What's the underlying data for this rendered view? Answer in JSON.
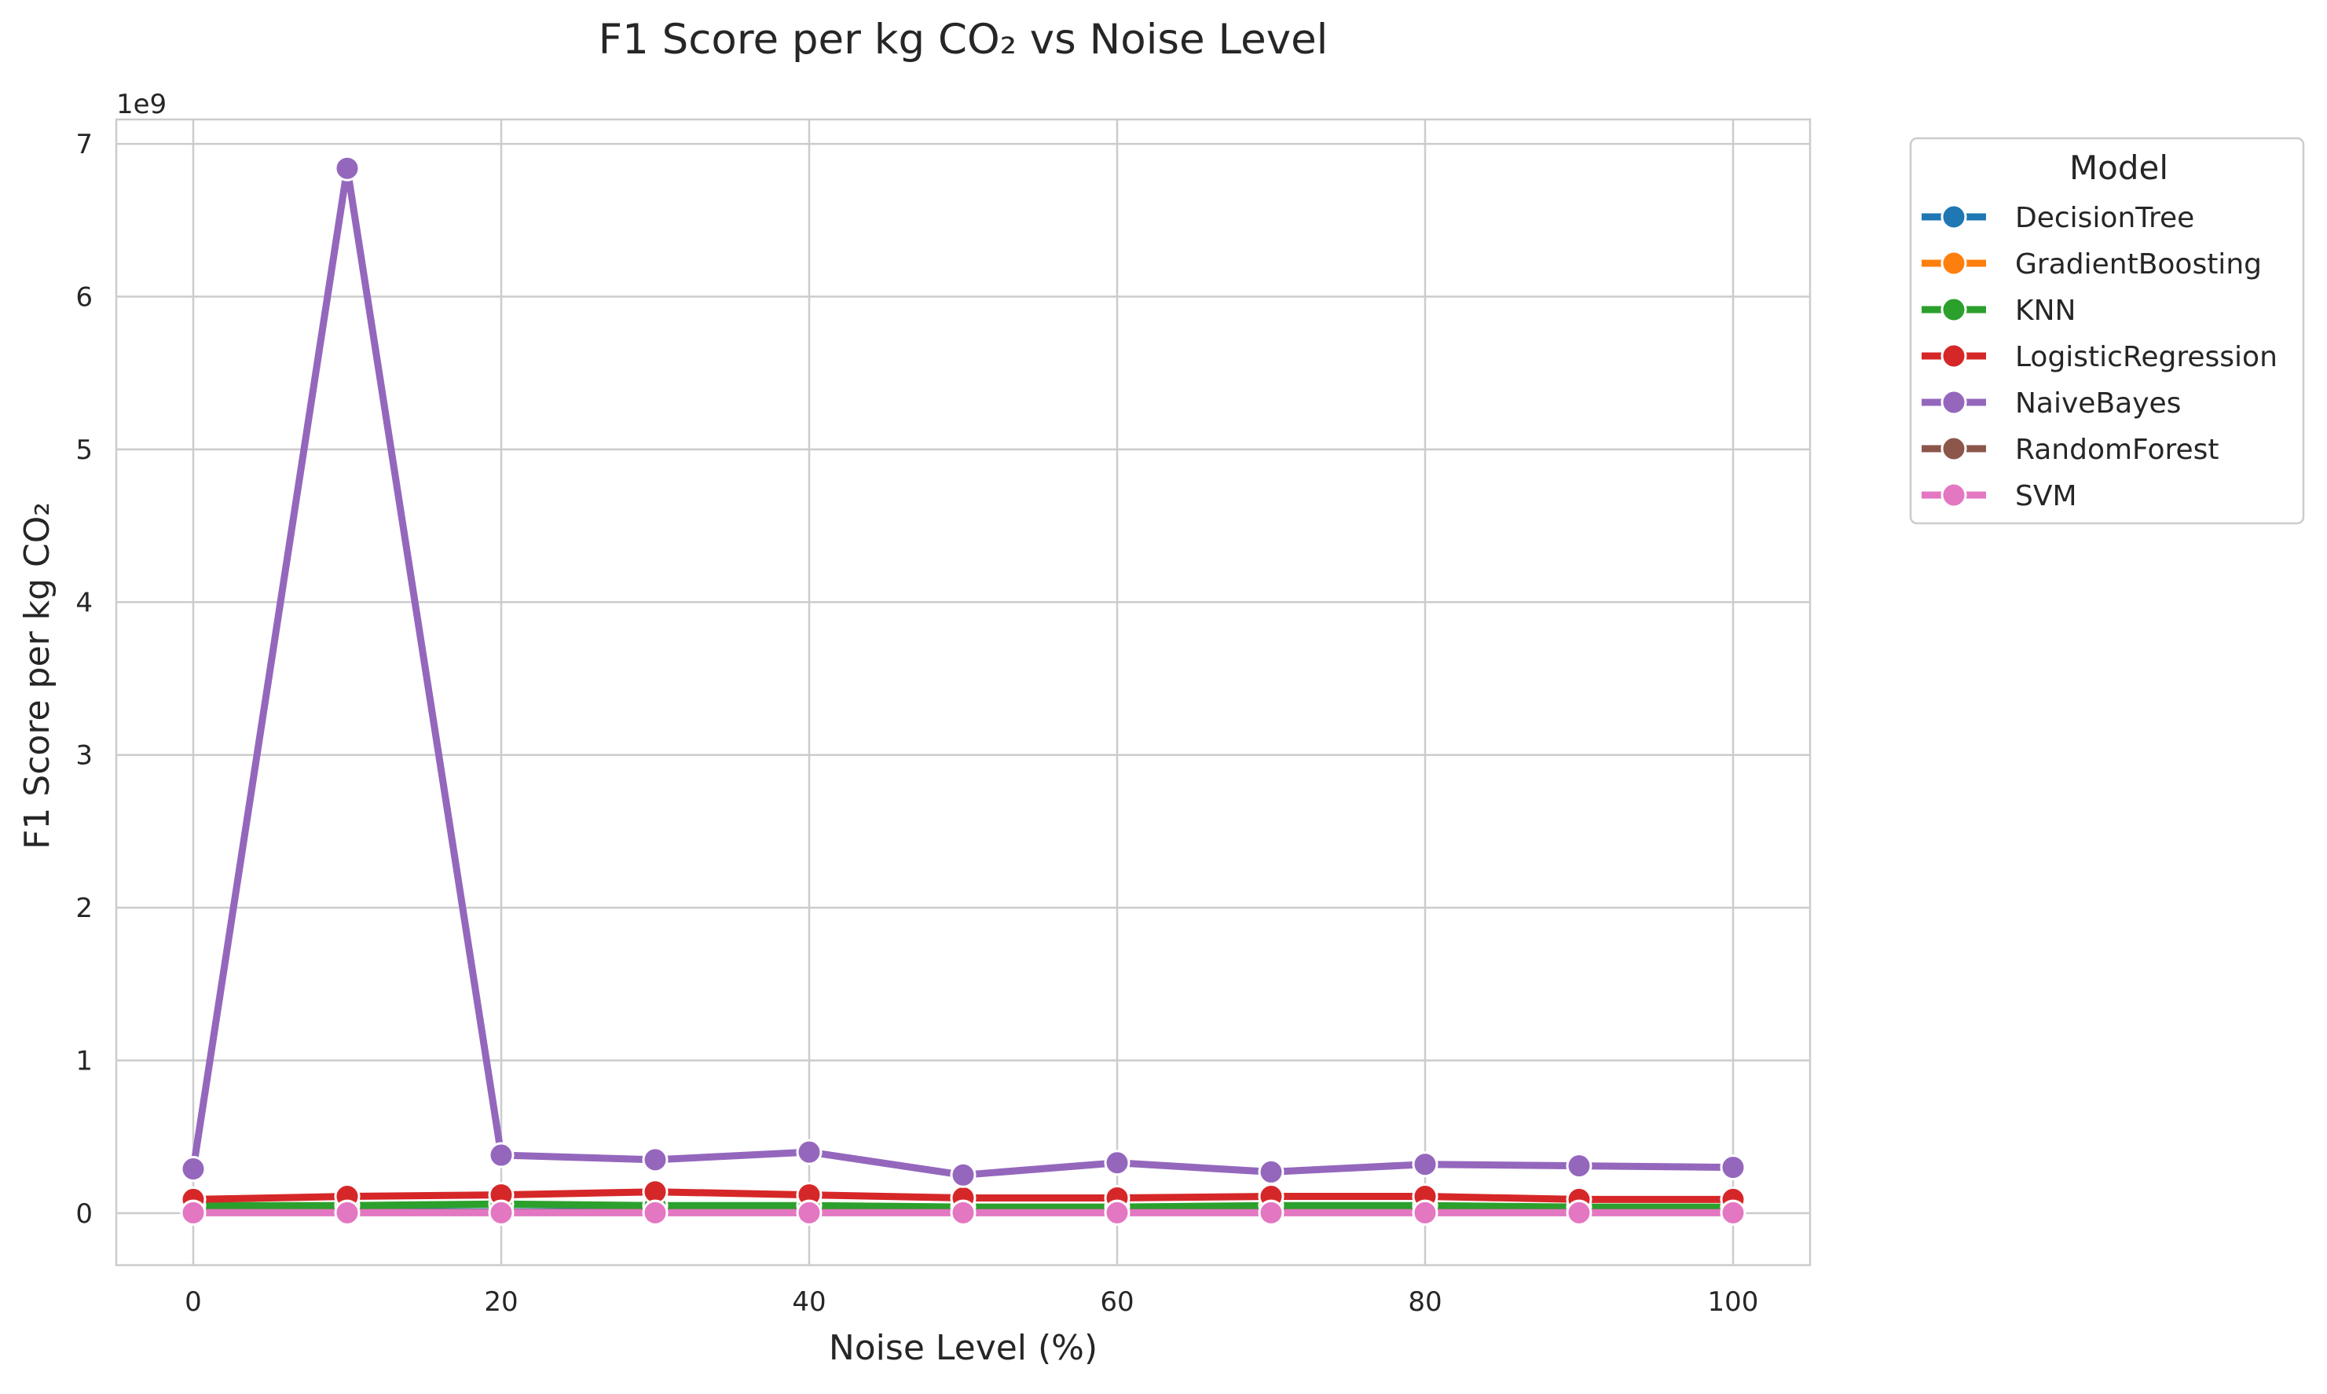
{
  "chart_data": {
    "type": "line",
    "title": "F1 Score per kg CO₂ vs Noise Level",
    "xlabel": "Noise Level (%)",
    "ylabel": "F1 Score per kg CO₂",
    "y_offset_label": "1e9",
    "xlim": [
      -5,
      105
    ],
    "ylim": [
      -0.34,
      7.16
    ],
    "x_ticks": [
      0,
      20,
      40,
      60,
      80,
      100
    ],
    "y_ticks": [
      0,
      1,
      2,
      3,
      4,
      5,
      6,
      7
    ],
    "grid": true,
    "legend": {
      "title": "Model",
      "placement": "outside-right-top"
    },
    "x": [
      0,
      10,
      20,
      30,
      40,
      50,
      60,
      70,
      80,
      90,
      100
    ],
    "series": [
      {
        "name": "DecisionTree",
        "color": "#1f77b4",
        "values": [
          0.01,
          0.01,
          0.01,
          0.01,
          0.01,
          0.01,
          0.01,
          0.01,
          0.01,
          0.01,
          0.01
        ]
      },
      {
        "name": "GradientBoosting",
        "color": "#ff7f0e",
        "values": [
          0.005,
          0.005,
          0.005,
          0.005,
          0.005,
          0.005,
          0.005,
          0.005,
          0.005,
          0.005,
          0.005
        ]
      },
      {
        "name": "KNN",
        "color": "#2ca02c",
        "values": [
          0.05,
          0.05,
          0.06,
          0.05,
          0.05,
          0.04,
          0.04,
          0.05,
          0.05,
          0.04,
          0.04
        ]
      },
      {
        "name": "LogisticRegression",
        "color": "#d62728",
        "values": [
          0.09,
          0.11,
          0.12,
          0.14,
          0.12,
          0.1,
          0.1,
          0.11,
          0.11,
          0.09,
          0.09
        ]
      },
      {
        "name": "NaiveBayes",
        "color": "#9467bd",
        "values": [
          0.29,
          6.84,
          0.38,
          0.35,
          0.4,
          0.25,
          0.33,
          0.27,
          0.32,
          0.31,
          0.3
        ]
      },
      {
        "name": "RandomForest",
        "color": "#8c564b",
        "values": [
          0.004,
          0.004,
          0.004,
          0.004,
          0.004,
          0.004,
          0.004,
          0.004,
          0.004,
          0.004,
          0.004
        ]
      },
      {
        "name": "SVM",
        "color": "#e377c2",
        "values": [
          0.003,
          0.003,
          0.003,
          0.003,
          0.003,
          0.003,
          0.003,
          0.003,
          0.003,
          0.003,
          0.003
        ]
      }
    ]
  }
}
